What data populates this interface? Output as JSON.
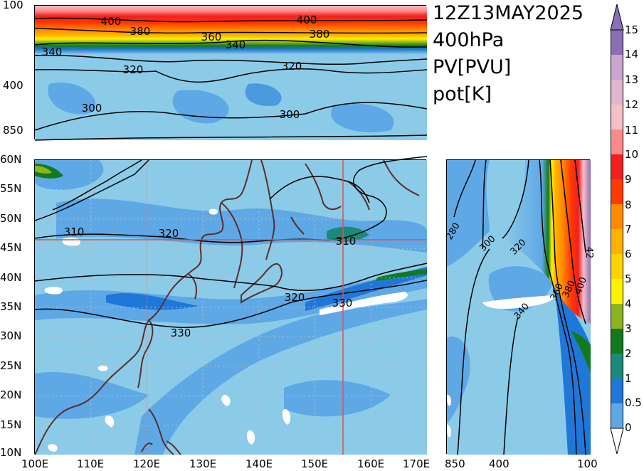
{
  "title": {
    "time": "12Z13MAY2025",
    "level": "400hPa",
    "shaded_var": "PV[PVU]",
    "contour_var": "pot[K]"
  },
  "cross_section_top": {
    "y_ticks": [
      "100",
      "400",
      "850"
    ],
    "contour_labels": [
      "400",
      "380",
      "360",
      "340",
      "320",
      "300",
      "400",
      "380",
      "340",
      "320",
      "300"
    ]
  },
  "map": {
    "lat_ticks": [
      "60N",
      "55N",
      "50N",
      "45N",
      "40N",
      "35N",
      "30N",
      "25N",
      "20N",
      "15N",
      "10N"
    ],
    "lon_ticks": [
      "100E",
      "110E",
      "120E",
      "130E",
      "140E",
      "150E",
      "160E",
      "170E"
    ],
    "contour_labels": [
      "310",
      "320",
      "310",
      "320",
      "330",
      "330"
    ],
    "crosshair": {
      "lon": 155,
      "lat": 46.5
    },
    "extent": {
      "lon": [
        100,
        170
      ],
      "lat": [
        10,
        60
      ]
    }
  },
  "cross_section_right": {
    "x_ticks": [
      "850",
      "400",
      "100"
    ],
    "contour_labels": [
      "280",
      "300",
      "320",
      "340",
      "360",
      "380",
      "400",
      "42"
    ]
  },
  "colorbar": {
    "labels": [
      "15",
      "14",
      "13",
      "12",
      "11",
      "10",
      "9",
      "8",
      "7",
      "6",
      "5",
      "4",
      "3",
      "2",
      "1",
      "0.5",
      "0"
    ],
    "colors": [
      "#8a6fb5",
      "#c9a5cf",
      "#e2b6cf",
      "#f6c0c9",
      "#fb8b8a",
      "#f21f1f",
      "#ff3a00",
      "#ff8c00",
      "#ffb300",
      "#ffd200",
      "#fff200",
      "#8ab520",
      "#127a1c",
      "#1c8a78",
      "#1f78d8",
      "#5fa8e6",
      "#8ccbe8"
    ]
  },
  "colors": {
    "coast": "#5a2d2d",
    "crosshair": "#e05050",
    "grid": "#bdbdbd",
    "contour": "#000000"
  }
}
